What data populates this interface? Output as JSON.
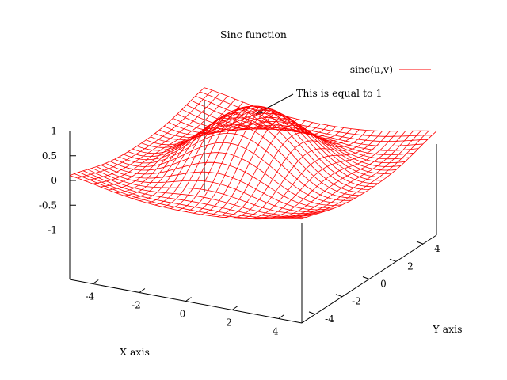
{
  "chart_data": {
    "type": "surface",
    "title": "Sinc function",
    "xlabel": "X axis",
    "ylabel": "Y axis",
    "zlabel": "",
    "function": "sinc(u,v)",
    "xlim": [
      -5,
      5
    ],
    "ylim": [
      -5,
      5
    ],
    "zlim": [
      -1,
      1
    ],
    "x_ticks": [
      -4,
      -2,
      0,
      2,
      4
    ],
    "y_ticks": [
      -4,
      -2,
      0,
      2,
      4
    ],
    "z_ticks": [
      -1,
      -0.5,
      0,
      0.5,
      1
    ],
    "grid_samples": 31,
    "legend": {
      "position": "top-right",
      "entries": [
        {
          "name": "sinc(u,v)",
          "color": "#ff0000"
        }
      ]
    },
    "annotations": [
      {
        "text": "This is equal to 1",
        "x": 0,
        "y": 0,
        "z": 1
      }
    ],
    "series": [
      {
        "name": "sinc(u,v)",
        "color": "#ff0000"
      }
    ]
  }
}
